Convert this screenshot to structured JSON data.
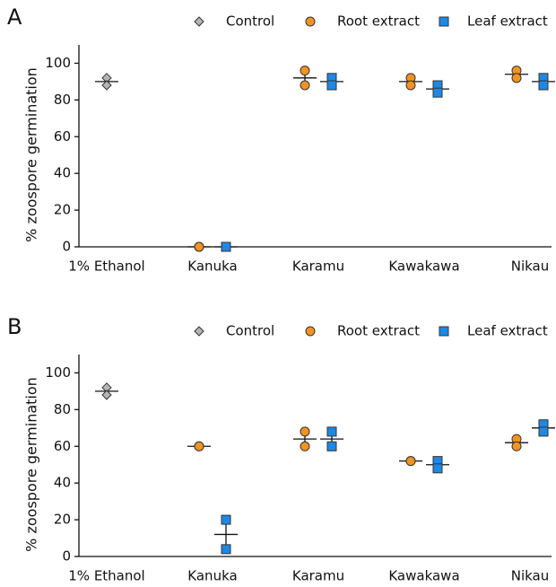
{
  "chart_data": [
    {
      "type": "scatter",
      "panel": "A",
      "ylabel": "% zoospore germination",
      "categories": [
        "1% Ethanol",
        "Kanuka",
        "Karamu",
        "Kawakawa",
        "Nikau"
      ],
      "ylim": [
        0,
        110
      ],
      "yticks": [
        0,
        20,
        40,
        60,
        80,
        100
      ],
      "series": [
        {
          "name": "Control",
          "color": "#b5b5b5",
          "marker": "diamond",
          "values": [
            [
              92,
              88
            ],
            null,
            null,
            null,
            null
          ],
          "means": [
            90,
            null,
            null,
            null,
            null
          ],
          "errors": [
            2,
            null,
            null,
            null,
            null
          ]
        },
        {
          "name": "Root extract",
          "color": "#f39323",
          "marker": "circle",
          "values": [
            null,
            [
              0,
              0
            ],
            [
              96,
              88
            ],
            [
              92,
              88
            ],
            [
              96,
              92
            ]
          ],
          "means": [
            null,
            0,
            92,
            90,
            94
          ],
          "errors": [
            null,
            0,
            4,
            2,
            2
          ]
        },
        {
          "name": "Leaf extract",
          "color": "#1e88e5",
          "marker": "square",
          "values": [
            null,
            [
              0,
              0
            ],
            [
              92,
              88
            ],
            [
              88,
              84
            ],
            [
              92,
              88
            ]
          ],
          "means": [
            null,
            0,
            90,
            86,
            90
          ],
          "errors": [
            null,
            0,
            2,
            2,
            2
          ]
        }
      ]
    },
    {
      "type": "scatter",
      "panel": "B",
      "ylabel": "% zoospore germination",
      "categories": [
        "1% Ethanol",
        "Kanuka",
        "Karamu",
        "Kawakawa",
        "Nikau"
      ],
      "ylim": [
        0,
        110
      ],
      "yticks": [
        0,
        20,
        40,
        60,
        80,
        100
      ],
      "series": [
        {
          "name": "Control",
          "color": "#b5b5b5",
          "marker": "diamond",
          "values": [
            [
              92,
              88
            ],
            null,
            null,
            null,
            null
          ],
          "means": [
            90,
            null,
            null,
            null,
            null
          ],
          "errors": [
            2,
            null,
            null,
            null,
            null
          ]
        },
        {
          "name": "Root extract",
          "color": "#f39323",
          "marker": "circle",
          "values": [
            null,
            [
              60,
              60
            ],
            [
              68,
              60
            ],
            [
              52,
              52
            ],
            [
              64,
              60
            ]
          ],
          "means": [
            null,
            60,
            64,
            52,
            62
          ],
          "errors": [
            null,
            0,
            4,
            0,
            2
          ]
        },
        {
          "name": "Leaf extract",
          "color": "#1e88e5",
          "marker": "square",
          "values": [
            null,
            [
              20,
              4
            ],
            [
              68,
              60
            ],
            [
              52,
              48
            ],
            [
              72,
              68
            ]
          ],
          "means": [
            null,
            12,
            64,
            50,
            70
          ],
          "errors": [
            null,
            8,
            4,
            2,
            2
          ]
        }
      ]
    }
  ]
}
